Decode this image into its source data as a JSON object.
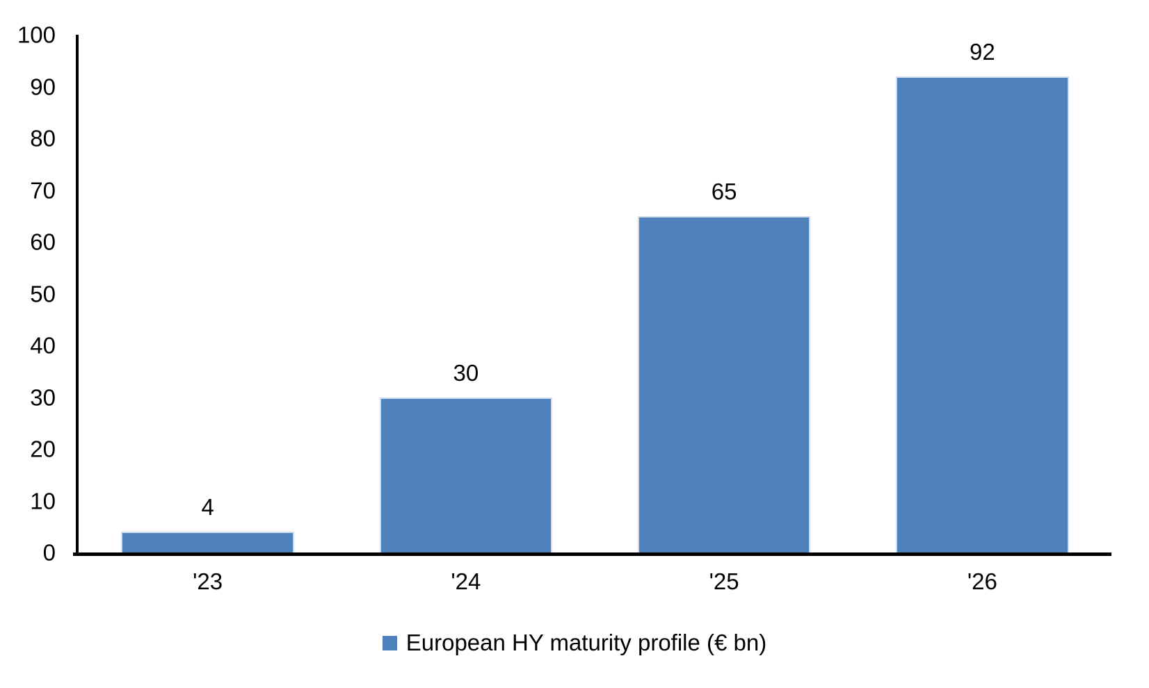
{
  "chart_data": {
    "type": "bar",
    "title": "",
    "categories": [
      "'23",
      "'24",
      "'25",
      "'26"
    ],
    "values": [
      4,
      30,
      65,
      92
    ],
    "series": [
      {
        "name": "European HY maturity profile (€ bn)",
        "values": [
          4,
          30,
          65,
          92
        ]
      }
    ],
    "data_labels": [
      "4",
      "30",
      "65",
      "92"
    ],
    "xlabel": "",
    "ylabel": "",
    "ylim": [
      0,
      100
    ],
    "yticks": [
      0,
      10,
      20,
      30,
      40,
      50,
      60,
      70,
      80,
      90,
      100
    ],
    "grid": false,
    "legend_position": "bottom",
    "colors": {
      "bar_fill": "#4F81BD",
      "bar_border": "#cfdcee",
      "axis": "#000000",
      "text": "#000000",
      "background": "#ffffff"
    }
  },
  "legend": {
    "marker_color": "#4F81BD",
    "label": "European HY maturity profile (€ bn)"
  }
}
